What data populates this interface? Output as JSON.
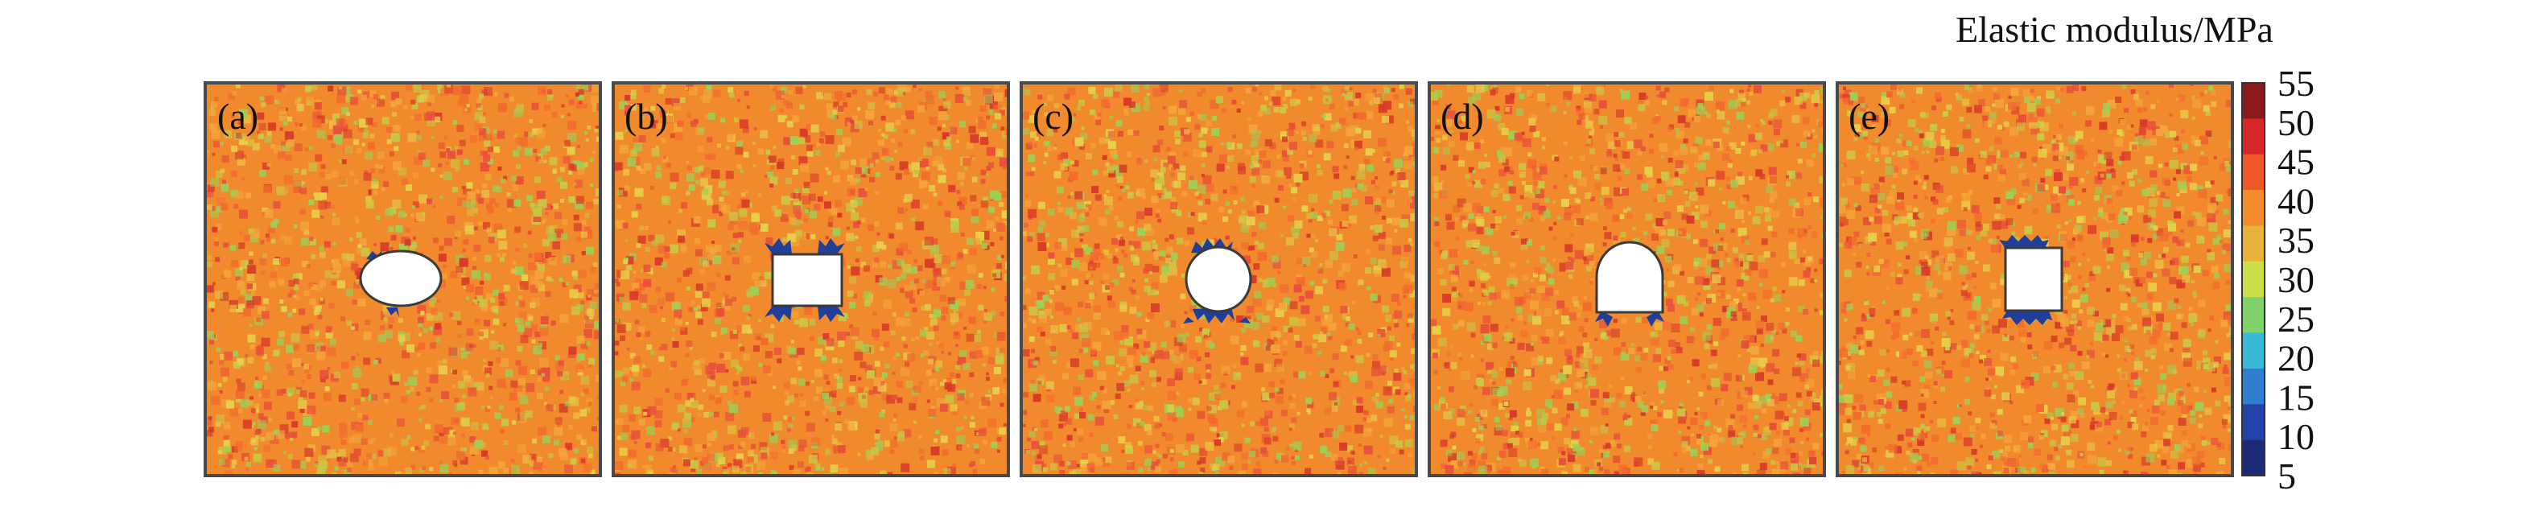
{
  "figure": {
    "panels": [
      {
        "label": "(a)",
        "hole_shape": "ellipse",
        "icon": "elliptical-opening"
      },
      {
        "label": "(b)",
        "hole_shape": "rectangle",
        "icon": "rectangular-opening"
      },
      {
        "label": "(c)",
        "hole_shape": "circle",
        "icon": "circular-opening"
      },
      {
        "label": "(d)",
        "hole_shape": "horseshoe",
        "icon": "horseshoe-opening"
      },
      {
        "label": "(e)",
        "hole_shape": "rectangle",
        "icon": "rectangular-opening"
      }
    ],
    "colorbar": {
      "title": "Elastic modulus/MPa",
      "ticks": [
        "55",
        "50",
        "45",
        "40",
        "35",
        "30",
        "25",
        "20",
        "15",
        "10",
        "5"
      ],
      "min": 5,
      "max": 55,
      "colors": [
        "#8b1a1a",
        "#d6262a",
        "#f0582a",
        "#f28c2c",
        "#e9b23a",
        "#cde04a",
        "#7fd26a",
        "#39b9d8",
        "#2f7fd0",
        "#2443a8",
        "#1c2a78"
      ]
    },
    "field_colors": {
      "base": "#f08a2c",
      "speckles": [
        "#e8503a",
        "#d93a2a",
        "#f3a53a",
        "#c9c845",
        "#9dcf55",
        "#f26b2e",
        "#e6d04a"
      ],
      "damage": "#1f3f9a"
    }
  }
}
